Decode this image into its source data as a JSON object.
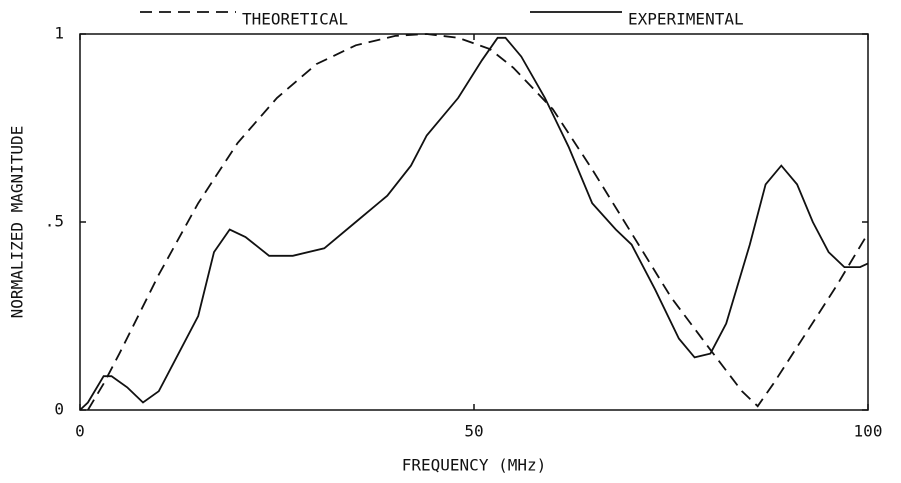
{
  "chart_data": {
    "type": "line",
    "xlabel": "FREQUENCY (MHz)",
    "ylabel": "NORMALIZED MAGNITUDE",
    "xlim": [
      0,
      100
    ],
    "ylim": [
      0,
      1
    ],
    "xticks": [
      0,
      50,
      100
    ],
    "yticks": [
      0,
      {
        "value": 0.5,
        "label": ".5"
      },
      1
    ],
    "series": [
      {
        "name": "THEORETICAL",
        "color": "#111111",
        "dashed": true,
        "x": [
          1,
          3,
          5,
          10,
          15,
          20,
          25,
          30,
          35,
          40,
          44,
          48,
          52,
          55,
          60,
          65,
          70,
          75,
          80,
          84,
          86,
          88,
          92,
          96,
          100
        ],
        "values": [
          0,
          0.07,
          0.15,
          0.36,
          0.55,
          0.71,
          0.83,
          0.92,
          0.97,
          0.995,
          1,
          0.99,
          0.96,
          0.91,
          0.8,
          0.64,
          0.47,
          0.3,
          0.16,
          0.05,
          0.01,
          0.07,
          0.2,
          0.33,
          0.47
        ]
      },
      {
        "name": "EXPERIMENTAL",
        "color": "#111111",
        "dashed": false,
        "x": [
          0,
          1,
          3,
          4,
          6,
          8,
          10,
          12,
          15,
          17,
          19,
          21,
          24,
          27,
          31,
          35,
          39,
          42,
          44,
          48,
          51,
          53,
          54,
          56,
          59,
          62,
          65,
          68,
          70,
          73,
          76,
          78,
          80,
          82,
          85,
          87,
          89,
          91,
          93,
          95,
          97,
          99,
          100
        ],
        "values": [
          0,
          0.02,
          0.09,
          0.09,
          0.06,
          0.02,
          0.05,
          0.13,
          0.25,
          0.42,
          0.48,
          0.46,
          0.41,
          0.41,
          0.43,
          0.5,
          0.57,
          0.65,
          0.73,
          0.83,
          0.93,
          0.99,
          0.99,
          0.94,
          0.83,
          0.7,
          0.55,
          0.48,
          0.44,
          0.32,
          0.19,
          0.14,
          0.15,
          0.23,
          0.44,
          0.6,
          0.65,
          0.6,
          0.5,
          0.42,
          0.38,
          0.38,
          0.39
        ]
      }
    ]
  }
}
